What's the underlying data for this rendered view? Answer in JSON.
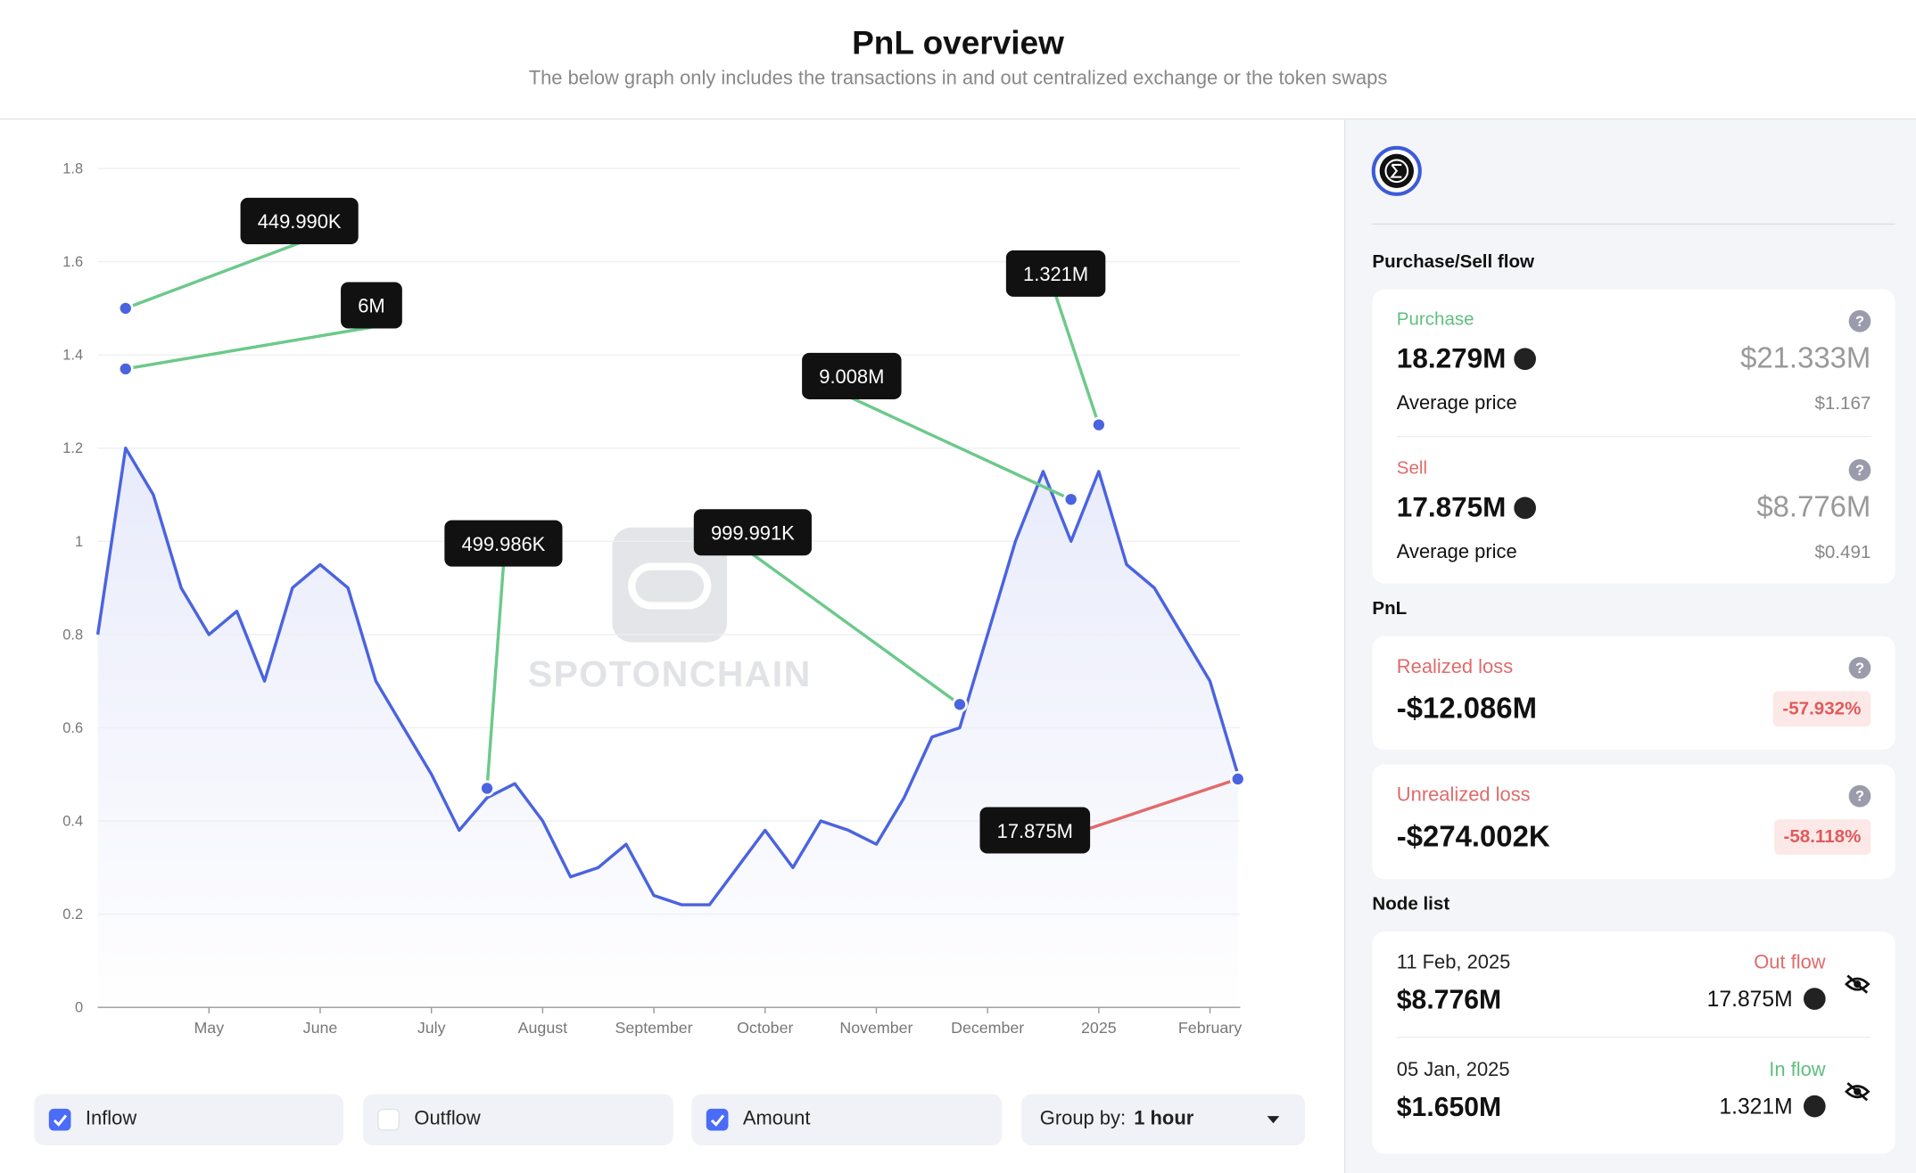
{
  "header": {
    "title": "PnL overview",
    "subtitle": "The below graph only includes the transactions in and out centralized exchange or the token swaps"
  },
  "chart_data": {
    "type": "line",
    "watermark": "SPOTONCHAIN",
    "color": "#4a63e0",
    "categories": [
      null,
      null,
      null,
      null,
      "May",
      null,
      null,
      null,
      "June",
      null,
      null,
      null,
      "July",
      null,
      null,
      null,
      "August",
      null,
      null,
      null,
      "September",
      null,
      null,
      null,
      "October",
      null,
      null,
      null,
      "November",
      null,
      null,
      null,
      "December",
      null,
      null,
      null,
      "2025",
      null,
      null,
      null,
      "February",
      null
    ],
    "values": [
      0.8,
      1.2,
      1.1,
      0.9,
      0.8,
      0.85,
      0.7,
      0.9,
      0.95,
      0.9,
      0.7,
      0.6,
      0.5,
      0.38,
      0.45,
      0.48,
      0.4,
      0.28,
      0.3,
      0.35,
      0.24,
      0.22,
      0.22,
      0.3,
      0.38,
      0.3,
      0.4,
      0.38,
      0.35,
      0.45,
      0.58,
      0.6,
      0.8,
      1.0,
      1.15,
      1.0,
      1.15,
      0.95,
      0.9,
      0.8,
      0.7,
      0.5
    ],
    "ylim": [
      0,
      1.8
    ],
    "yticks": [
      0,
      0.2,
      0.4,
      0.6,
      0.8,
      1,
      1.2,
      1.4,
      1.6,
      1.8
    ],
    "grid": true,
    "annotations": [
      {
        "label": "449.990K",
        "index": 1,
        "y": 1.5,
        "color": "#6cc98a"
      },
      {
        "label": "6M",
        "index": 1,
        "y": 1.37,
        "color": "#6cc98a"
      },
      {
        "label": "499.986K",
        "index": 14,
        "y": 0.47,
        "color": "#6cc98a"
      },
      {
        "label": "999.991K",
        "index": 31,
        "y": 0.65,
        "color": "#6cc98a"
      },
      {
        "label": "9.008M",
        "index": 35,
        "y": 1.09,
        "color": "#6cc98a"
      },
      {
        "label": "1.321M",
        "index": 36,
        "y": 1.25,
        "color": "#6cc98a"
      },
      {
        "label": "17.875M",
        "index": 41,
        "y": 0.49,
        "color": "#e06b6b"
      }
    ]
  },
  "controls": {
    "inflow": {
      "label": "Inflow",
      "checked": true
    },
    "outflow": {
      "label": "Outflow",
      "checked": false
    },
    "amount": {
      "label": "Amount",
      "checked": true
    },
    "group_by": {
      "label": "Group by:",
      "value": "1 hour"
    }
  },
  "sidebar": {
    "purchase_sell": {
      "title": "Purchase/Sell flow",
      "purchase": {
        "label": "Purchase",
        "amount": "18.279M",
        "usd": "$21.333M",
        "avg_label": "Average price",
        "avg": "$1.167"
      },
      "sell": {
        "label": "Sell",
        "amount": "17.875M",
        "usd": "$8.776M",
        "avg_label": "Average price",
        "avg": "$0.491"
      }
    },
    "pnl": {
      "title": "PnL",
      "realized": {
        "label": "Realized loss",
        "value": "-$12.086M",
        "pct": "-57.932%"
      },
      "unrealized": {
        "label": "Unrealized loss",
        "value": "-$274.002K",
        "pct": "-58.118%"
      }
    },
    "node_list": {
      "title": "Node list",
      "nodes": [
        {
          "date": "11 Feb, 2025",
          "usd": "$8.776M",
          "flow": "Out flow",
          "amount": "17.875M"
        },
        {
          "date": "05 Jan, 2025",
          "usd": "$1.650M",
          "flow": "In flow",
          "amount": "1.321M"
        }
      ]
    }
  }
}
